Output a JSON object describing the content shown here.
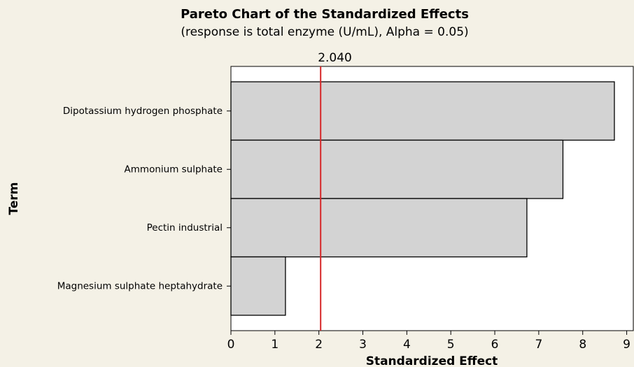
{
  "chart_data": {
    "type": "bar",
    "orientation": "horizontal",
    "title": "Pareto Chart of the Standardized Effects",
    "subtitle": "(response is total enzyme (U/mL), Alpha = 0.05)",
    "x_label": "Standardized Effect",
    "y_label": "Term",
    "categories": [
      "Dipotassium hydrogen phosphate",
      "Ammonium sulphate",
      "Pectin industrial",
      "Magnesium sulphate heptahydrate"
    ],
    "values": [
      8.72,
      7.55,
      6.73,
      1.24
    ],
    "color": "#d3d3d3",
    "reference_line": {
      "value": 2.04,
      "label": "2.040",
      "color": "#d62728"
    },
    "xlim": [
      0,
      9.15
    ],
    "xticks": [
      0,
      1,
      2,
      3,
      4,
      5,
      6,
      7,
      8,
      9
    ]
  }
}
